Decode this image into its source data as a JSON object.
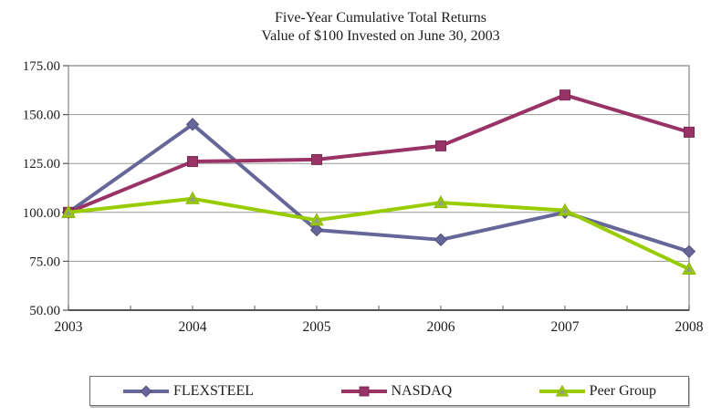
{
  "title": {
    "line1": "Five-Year Cumulative Total Returns",
    "line2": "Value of $100 Invested on June 30, 2003"
  },
  "chart_data": {
    "type": "line",
    "categories": [
      "2003",
      "2004",
      "2005",
      "2006",
      "2007",
      "2008"
    ],
    "series": [
      {
        "name": "FLEXSTEEL",
        "marker": "diamond",
        "color": "#666699",
        "border": "#50507e",
        "values": [
          100,
          145,
          91,
          86,
          100,
          80
        ]
      },
      {
        "name": "NASDAQ",
        "marker": "square",
        "color": "#993366",
        "border": "#7c2a54",
        "values": [
          100,
          126,
          127,
          134,
          160,
          141
        ]
      },
      {
        "name": "Peer Group",
        "marker": "triangle",
        "color": "#99cc00",
        "border": "#8ab605",
        "marker_inner": "#8d94a6",
        "values": [
          100,
          107,
          96,
          105,
          101,
          71
        ]
      }
    ],
    "ylim": [
      50,
      175
    ],
    "ytick_step": 25,
    "ytick_labels": [
      "50.00",
      "75.00",
      "100.00",
      "125.00",
      "150.00",
      "175.00"
    ],
    "xlabel": "",
    "ylabel": "",
    "grid": "horizontal-only",
    "legend_position": "bottom",
    "colors": {
      "gridline": "#9a9a9a",
      "plot_border": "#8c8c8c",
      "axis": "#555555",
      "text": "#1c1c1c"
    }
  }
}
